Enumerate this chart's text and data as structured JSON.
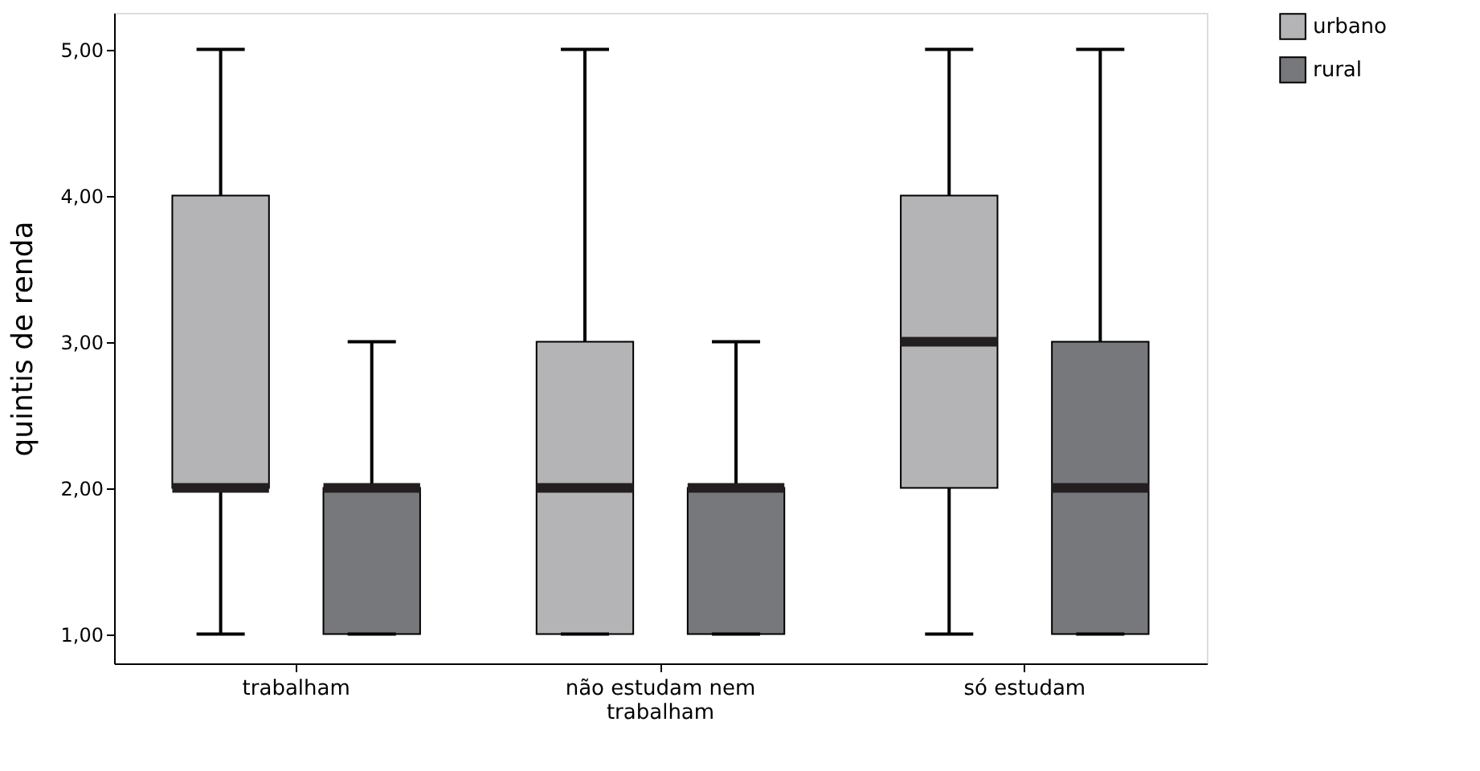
{
  "chart_data": {
    "type": "box",
    "ylabel": "quintis de renda",
    "categories": [
      "trabalham",
      "não estudam nem\ntrabalham",
      "só estudam"
    ],
    "ylim": [
      0.8,
      5.25
    ],
    "yticks": [
      {
        "value": 1,
        "label": "1,00"
      },
      {
        "value": 2,
        "label": "2,00"
      },
      {
        "value": 3,
        "label": "3,00"
      },
      {
        "value": 4,
        "label": "4,00"
      },
      {
        "value": 5,
        "label": "5,00"
      }
    ],
    "grid": false,
    "legend": "right",
    "series": [
      {
        "name": "urbano",
        "color": "#b4b4b6",
        "boxes": [
          {
            "low": 1,
            "q1": 2,
            "median": 2,
            "q3": 4,
            "high": 5
          },
          {
            "low": 1,
            "q1": 1,
            "median": 2,
            "q3": 3,
            "high": 5
          },
          {
            "low": 1,
            "q1": 2,
            "median": 3,
            "q3": 4,
            "high": 5
          }
        ]
      },
      {
        "name": "rural",
        "color": "#77787b",
        "boxes": [
          {
            "low": 1,
            "q1": 1,
            "median": 2,
            "q3": 2,
            "high": 3
          },
          {
            "low": 1,
            "q1": 1,
            "median": 2,
            "q3": 2,
            "high": 3
          },
          {
            "low": 1,
            "q1": 1,
            "median": 2,
            "q3": 3,
            "high": 5
          }
        ]
      }
    ]
  }
}
